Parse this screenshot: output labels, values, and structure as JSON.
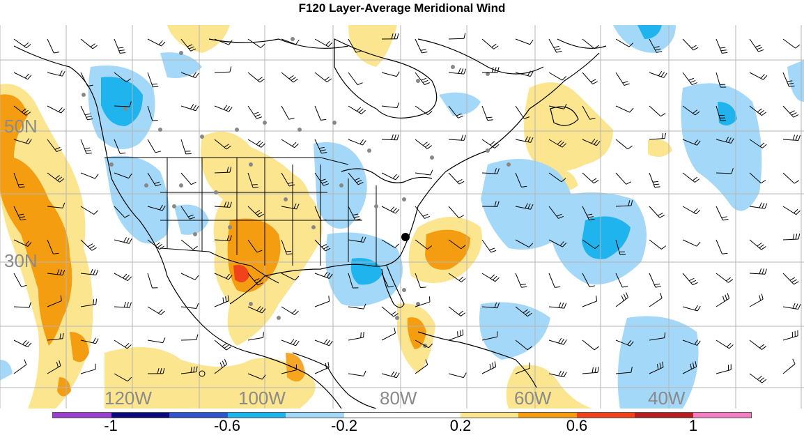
{
  "title": "F120 Layer-Average Meridional Wind",
  "lat_labels": [
    "50N",
    "30N"
  ],
  "lon_labels": [
    "120W",
    "100W",
    "80W",
    "60W",
    "40W"
  ],
  "colorbar": {
    "colors": [
      "#9b3fcf",
      "#0a0a7a",
      "#2f55c9",
      "#20b4ee",
      "#a3d8f8",
      "#ffffff",
      "#ffffff",
      "#fbe58f",
      "#f59d10",
      "#f0431b",
      "#b51f1f",
      "#f27fc2"
    ],
    "labels": [
      "-1",
      "-0.6",
      "-0.2",
      "0.2",
      "0.6",
      "1"
    ]
  },
  "legend": {
    "positive_fill": "#fbe58f",
    "positive_strong": "#f59d10",
    "positive_max": "#f0431b",
    "negative_fill": "#a3d8f8",
    "negative_strong": "#20b4ee"
  }
}
